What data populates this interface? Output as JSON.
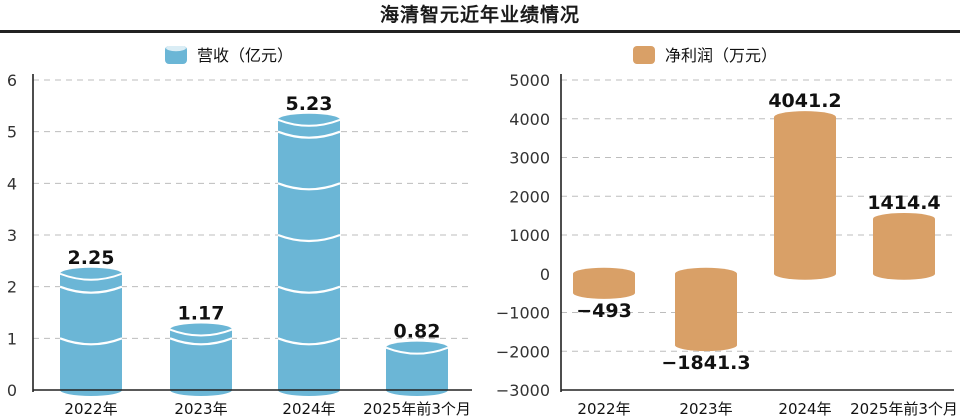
{
  "title": "海清智元近年业绩情况",
  "chart_data": [
    {
      "type": "bar",
      "categories": [
        "2022年",
        "2023年",
        "2024年",
        "2025年前3个月"
      ],
      "series": [
        {
          "name": "营收（亿元）",
          "values": [
            2.25,
            1.17,
            5.23,
            0.82
          ]
        }
      ],
      "data_labels": [
        "2.25",
        "1.17",
        "5.23",
        "0.82"
      ],
      "ylim": [
        0,
        6
      ],
      "yticks": [
        0,
        1,
        2,
        3,
        4,
        5,
        6
      ],
      "grid": true,
      "legend_position": "top-center",
      "color": "#6bb6d6"
    },
    {
      "type": "bar",
      "categories": [
        "2022年",
        "2023年",
        "2024年",
        "2025年前3个月"
      ],
      "series": [
        {
          "name": "净利润（万元）",
          "values": [
            -493,
            -1841.3,
            4041.2,
            1414.4
          ]
        }
      ],
      "data_labels": [
        "−493",
        "−1841.3",
        "4041.2",
        "1414.4"
      ],
      "ylim": [
        -3000,
        5000
      ],
      "yticks": [
        5000,
        4000,
        3000,
        2000,
        1000,
        0,
        -1000,
        -2000,
        -3000
      ],
      "ytick_labels": [
        "5000",
        "4000",
        "3000",
        "2000",
        "1000",
        "0",
        "−1000",
        "−2000",
        "−3000"
      ],
      "grid": true,
      "legend_position": "top-center",
      "color": "#d9a067"
    }
  ]
}
